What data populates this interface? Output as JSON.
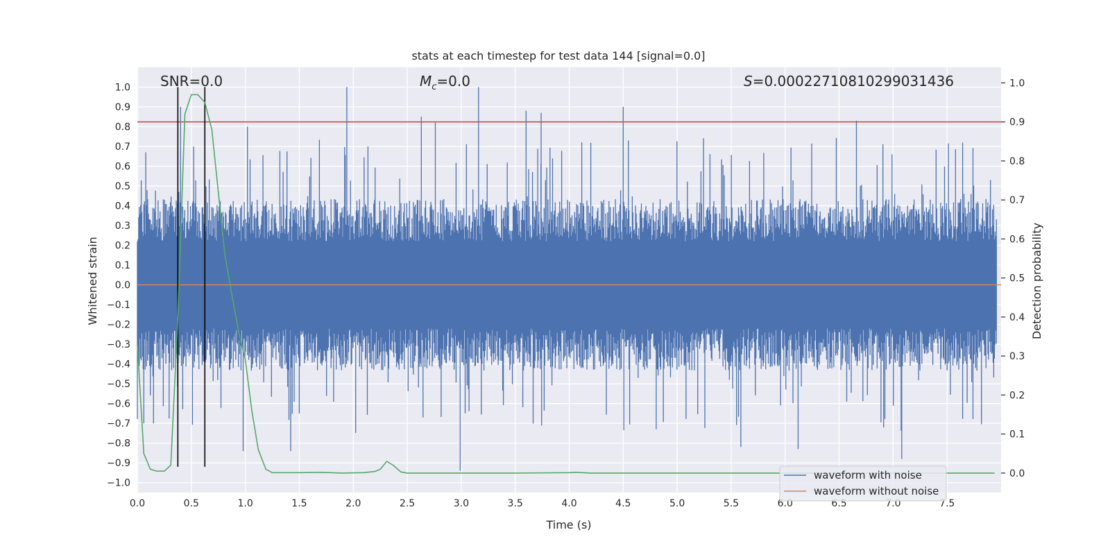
{
  "chart_data": {
    "type": "line",
    "title": "stats at each timestep for test data 144 [signal=0.0]",
    "xlabel": "Time (s)",
    "ylabel": "Whitened strain",
    "y2label": "Detection probability",
    "xlim": [
      0.0,
      8.0
    ],
    "ylim": [
      -1.05,
      1.1
    ],
    "y2lim": [
      -0.05,
      1.04
    ],
    "x_ticks": [
      "0.0",
      "0.5",
      "1.0",
      "1.5",
      "2.0",
      "2.5",
      "3.0",
      "3.5",
      "4.0",
      "4.5",
      "5.0",
      "5.5",
      "6.0",
      "6.5",
      "7.0",
      "7.5"
    ],
    "y_ticks": [
      "1.0",
      "0.9",
      "0.8",
      "0.7",
      "0.6",
      "0.5",
      "0.4",
      "0.3",
      "0.2",
      "0.1",
      "0.0",
      "−0.1",
      "−0.2",
      "−0.3",
      "−0.4",
      "−0.5",
      "−0.6",
      "−0.7",
      "−0.8",
      "−0.9",
      "−1.0"
    ],
    "y2_ticks": [
      "1.0",
      "0.9",
      "0.8",
      "0.7",
      "0.6",
      "0.5",
      "0.4",
      "0.3",
      "0.2",
      "0.1",
      "0.0"
    ],
    "annotations": {
      "snr": "SNR=0.0",
      "mc_symbol": "M",
      "mc_subscript": "c",
      "mc_value": "=0.0",
      "s_symbol": "S",
      "s_value": "=0.00022710810299031436"
    },
    "legend": {
      "placement": "lower-right",
      "entries": [
        "waveform with noise",
        "waveform without noise"
      ]
    },
    "grid": true,
    "threshold": {
      "axis": "right",
      "y": 0.9,
      "color": "#c44e52"
    },
    "vertical_markers": {
      "x": [
        0.375,
        0.625
      ],
      "y_from": -0.92,
      "y_to": 1.0,
      "color": "#000000"
    },
    "noise_band": {
      "description_free": true,
      "typical_low": -0.45,
      "typical_high": 0.45,
      "color": "#4c72b0"
    },
    "noise_peaks": [
      {
        "x": 1.94,
        "y": 1.0
      },
      {
        "x": 3.16,
        "y": 1.0
      },
      {
        "x": 4.5,
        "y": 0.9
      },
      {
        "x": 3.6,
        "y": 0.88
      },
      {
        "x": 2.63,
        "y": 0.85
      },
      {
        "x": 3.74,
        "y": 0.87
      },
      {
        "x": 6.66,
        "y": 0.83
      },
      {
        "x": 2.76,
        "y": 0.82
      },
      {
        "x": 1.02,
        "y": 0.8
      },
      {
        "x": 2.99,
        "y": -0.94
      },
      {
        "x": 7.08,
        "y": -0.88
      },
      {
        "x": 1.42,
        "y": -0.84
      },
      {
        "x": 5.59,
        "y": -0.82
      },
      {
        "x": 6.12,
        "y": -0.83
      },
      {
        "x": 0.98,
        "y": -0.84
      },
      {
        "x": 0.15,
        "y": -0.7
      },
      {
        "x": 0.4,
        "y": 0.9
      }
    ],
    "series": [
      {
        "name": "waveform with noise",
        "color": "#4c72b0",
        "axis": "left"
      },
      {
        "name": "waveform without noise",
        "color": "#dd8452",
        "axis": "left",
        "x": [
          0.0,
          8.0
        ],
        "y": [
          0.0,
          0.0
        ]
      },
      {
        "color": "#55a868",
        "axis": "right",
        "x": [
          0.0,
          0.06,
          0.12,
          0.18,
          0.25,
          0.31,
          0.375,
          0.44,
          0.5,
          0.56,
          0.625,
          0.69,
          0.75,
          0.81,
          0.88,
          0.94,
          1.0,
          1.06,
          1.12,
          1.19,
          1.25,
          1.5,
          1.7,
          1.9,
          2.1,
          2.2,
          2.25,
          2.31,
          2.37,
          2.44,
          2.5,
          3.0,
          3.5,
          4.0,
          4.06,
          4.2,
          5.0,
          6.0,
          7.0,
          7.94
        ],
        "y": [
          0.33,
          0.05,
          0.01,
          0.005,
          0.005,
          0.02,
          0.4,
          0.92,
          0.97,
          0.97,
          0.95,
          0.88,
          0.72,
          0.56,
          0.45,
          0.36,
          0.29,
          0.16,
          0.06,
          0.01,
          0.001,
          0.001,
          0.002,
          0.0,
          0.001,
          0.004,
          0.01,
          0.03,
          0.02,
          0.003,
          0.0,
          0.0,
          0.0,
          0.001,
          0.002,
          0.0,
          0.0,
          0.0,
          0.0,
          0.0
        ]
      }
    ]
  }
}
